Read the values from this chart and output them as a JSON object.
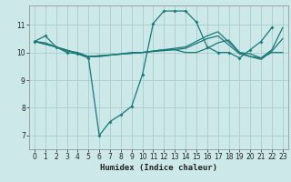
{
  "xlabel": "Humidex (Indice chaleur)",
  "bg_color": "#cce8e8",
  "grid_color": "#aacccc",
  "line_color": "#1a7878",
  "xlim": [
    -0.5,
    23.5
  ],
  "ylim": [
    6.5,
    11.7
  ],
  "xticks": [
    0,
    1,
    2,
    3,
    4,
    5,
    6,
    7,
    8,
    9,
    10,
    11,
    12,
    13,
    14,
    15,
    16,
    17,
    18,
    19,
    20,
    21,
    22,
    23
  ],
  "yticks": [
    7,
    8,
    9,
    10,
    11
  ],
  "line1_x": [
    0,
    1,
    2,
    3,
    4,
    5,
    6,
    7,
    8,
    9,
    10,
    11,
    12,
    13,
    14,
    15,
    16,
    17,
    18,
    19,
    20,
    21,
    22
  ],
  "line1_y": [
    10.4,
    10.6,
    10.2,
    10.0,
    9.95,
    9.8,
    7.0,
    7.5,
    7.75,
    8.05,
    9.2,
    11.05,
    11.5,
    11.5,
    11.5,
    11.1,
    10.2,
    10.0,
    10.0,
    9.8,
    10.1,
    10.4,
    10.9
  ],
  "line2_x": [
    0,
    1,
    2,
    3,
    4,
    5,
    6,
    7,
    8,
    9,
    10,
    11,
    12,
    13,
    14,
    15,
    16,
    17,
    18,
    19,
    20,
    21,
    22,
    23
  ],
  "line2_y": [
    10.4,
    10.35,
    10.2,
    10.05,
    10.0,
    9.85,
    9.85,
    9.9,
    9.95,
    10.0,
    10.0,
    10.05,
    10.1,
    10.1,
    10.0,
    10.0,
    10.15,
    10.35,
    10.45,
    10.0,
    9.95,
    9.8,
    10.0,
    10.0
  ],
  "line3_x": [
    0,
    2,
    5,
    10,
    13,
    14,
    16,
    17,
    19,
    20,
    21,
    22,
    23
  ],
  "line3_y": [
    10.4,
    10.2,
    9.85,
    10.0,
    10.15,
    10.2,
    10.6,
    10.75,
    10.0,
    9.85,
    9.8,
    10.1,
    10.9
  ],
  "line4_x": [
    0,
    2,
    5,
    10,
    13,
    14,
    16,
    17,
    19,
    20,
    21,
    22,
    23
  ],
  "line4_y": [
    10.4,
    10.2,
    9.85,
    10.0,
    10.1,
    10.15,
    10.5,
    10.6,
    9.95,
    9.85,
    9.75,
    10.05,
    10.5
  ]
}
